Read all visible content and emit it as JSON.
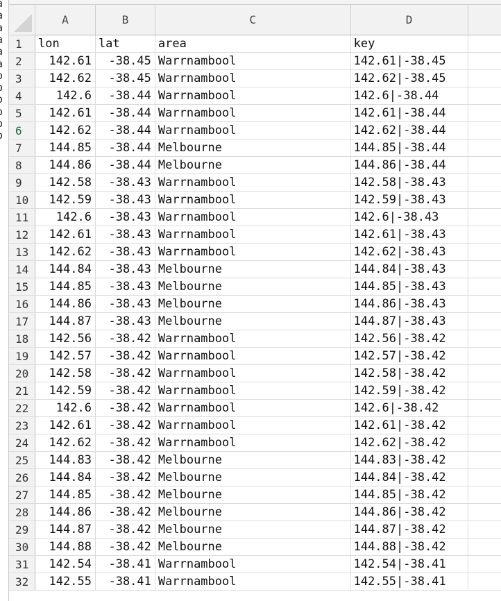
{
  "columns": [
    "A",
    "B",
    "C",
    "D"
  ],
  "left_strip_letters": [
    "a",
    "a",
    "a",
    "a",
    "a",
    "a",
    "o",
    "o",
    "o",
    "o",
    "o",
    "o"
  ],
  "rows": [
    {
      "num": "1",
      "a": "lon",
      "b": "lat",
      "c": "area",
      "d": "key"
    },
    {
      "num": "2",
      "a": "142.61",
      "b": "-38.45",
      "c": "Warrnambool",
      "d": "142.61|-38.45"
    },
    {
      "num": "3",
      "a": "142.62",
      "b": "-38.45",
      "c": "Warrnambool",
      "d": "142.62|-38.45"
    },
    {
      "num": "4",
      "a": "142.6",
      "b": "-38.44",
      "c": "Warrnambool",
      "d": "142.6|-38.44"
    },
    {
      "num": "5",
      "a": "142.61",
      "b": "-38.44",
      "c": "Warrnambool",
      "d": "142.61|-38.44"
    },
    {
      "num": "6",
      "a": "142.62",
      "b": "-38.44",
      "c": "Warrnambool",
      "d": "142.62|-38.44"
    },
    {
      "num": "7",
      "a": "144.85",
      "b": "-38.44",
      "c": "Melbourne",
      "d": "144.85|-38.44"
    },
    {
      "num": "8",
      "a": "144.86",
      "b": "-38.44",
      "c": "Melbourne",
      "d": "144.86|-38.44"
    },
    {
      "num": "9",
      "a": "142.58",
      "b": "-38.43",
      "c": "Warrnambool",
      "d": "142.58|-38.43"
    },
    {
      "num": "10",
      "a": "142.59",
      "b": "-38.43",
      "c": "Warrnambool",
      "d": "142.59|-38.43"
    },
    {
      "num": "11",
      "a": "142.6",
      "b": "-38.43",
      "c": "Warrnambool",
      "d": "142.6|-38.43"
    },
    {
      "num": "12",
      "a": "142.61",
      "b": "-38.43",
      "c": "Warrnambool",
      "d": "142.61|-38.43"
    },
    {
      "num": "13",
      "a": "142.62",
      "b": "-38.43",
      "c": "Warrnambool",
      "d": "142.62|-38.43"
    },
    {
      "num": "14",
      "a": "144.84",
      "b": "-38.43",
      "c": "Melbourne",
      "d": "144.84|-38.43"
    },
    {
      "num": "15",
      "a": "144.85",
      "b": "-38.43",
      "c": "Melbourne",
      "d": "144.85|-38.43"
    },
    {
      "num": "16",
      "a": "144.86",
      "b": "-38.43",
      "c": "Melbourne",
      "d": "144.86|-38.43"
    },
    {
      "num": "17",
      "a": "144.87",
      "b": "-38.43",
      "c": "Melbourne",
      "d": "144.87|-38.43"
    },
    {
      "num": "18",
      "a": "142.56",
      "b": "-38.42",
      "c": "Warrnambool",
      "d": "142.56|-38.42"
    },
    {
      "num": "19",
      "a": "142.57",
      "b": "-38.42",
      "c": "Warrnambool",
      "d": "142.57|-38.42"
    },
    {
      "num": "20",
      "a": "142.58",
      "b": "-38.42",
      "c": "Warrnambool",
      "d": "142.58|-38.42"
    },
    {
      "num": "21",
      "a": "142.59",
      "b": "-38.42",
      "c": "Warrnambool",
      "d": "142.59|-38.42"
    },
    {
      "num": "22",
      "a": "142.6",
      "b": "-38.42",
      "c": "Warrnambool",
      "d": "142.6|-38.42"
    },
    {
      "num": "23",
      "a": "142.61",
      "b": "-38.42",
      "c": "Warrnambool",
      "d": "142.61|-38.42"
    },
    {
      "num": "24",
      "a": "142.62",
      "b": "-38.42",
      "c": "Warrnambool",
      "d": "142.62|-38.42"
    },
    {
      "num": "25",
      "a": "144.83",
      "b": "-38.42",
      "c": "Melbourne",
      "d": "144.83|-38.42"
    },
    {
      "num": "26",
      "a": "144.84",
      "b": "-38.42",
      "c": "Melbourne",
      "d": "144.84|-38.42"
    },
    {
      "num": "27",
      "a": "144.85",
      "b": "-38.42",
      "c": "Melbourne",
      "d": "144.85|-38.42"
    },
    {
      "num": "28",
      "a": "144.86",
      "b": "-38.42",
      "c": "Melbourne",
      "d": "144.86|-38.42"
    },
    {
      "num": "29",
      "a": "144.87",
      "b": "-38.42",
      "c": "Melbourne",
      "d": "144.87|-38.42"
    },
    {
      "num": "30",
      "a": "144.88",
      "b": "-38.42",
      "c": "Melbourne",
      "d": "144.88|-38.42"
    },
    {
      "num": "31",
      "a": "142.54",
      "b": "-38.41",
      "c": "Warrnambool",
      "d": "142.54|-38.41"
    },
    {
      "num": "32",
      "a": "142.55",
      "b": "-38.41",
      "c": "Warrnambool",
      "d": "142.55|-38.41"
    }
  ],
  "active_row": "6",
  "colors": {
    "active_row_marker": "#1e6b3a",
    "header_bg": "#f2f2f2",
    "gridline": "#dcdcdc"
  }
}
